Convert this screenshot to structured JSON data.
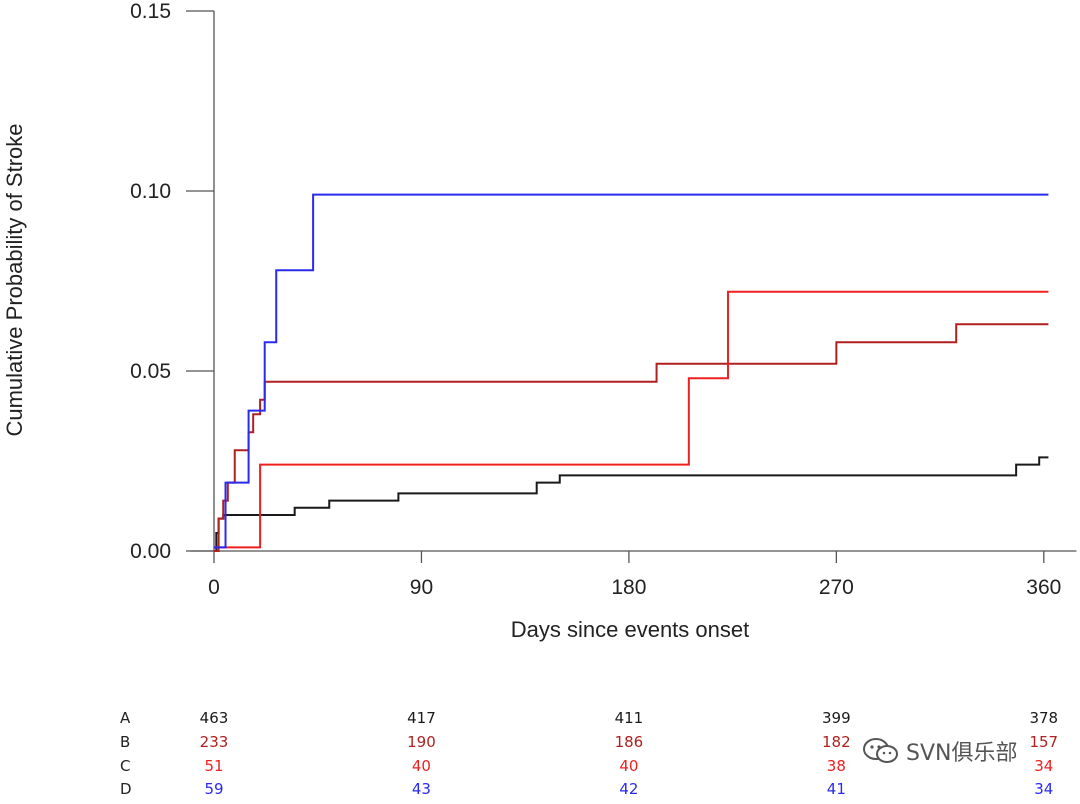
{
  "chart_data": {
    "type": "line",
    "step": true,
    "title": "",
    "xlabel": "Days since events onset",
    "ylabel": "Cumulative Probability of Stroke",
    "xlim": [
      -8,
      372
    ],
    "ylim": [
      0,
      0.15
    ],
    "x_ticks": [
      0,
      90,
      180,
      270,
      360
    ],
    "x_tick_labels": [
      "0",
      "90",
      "180",
      "270",
      "360"
    ],
    "y_ticks": [
      0,
      0.05,
      0.1,
      0.15
    ],
    "y_tick_labels": [
      "0.00",
      "0.05",
      "0.10",
      "0.15"
    ],
    "grid": false,
    "legend": "none",
    "series": [
      {
        "key": "A",
        "color": "#1a1a1a",
        "x": [
          0,
          1,
          2,
          4,
          35,
          50,
          80,
          140,
          150,
          348,
          358,
          362
        ],
        "y": [
          0.0,
          0.005,
          0.009,
          0.01,
          0.012,
          0.014,
          0.016,
          0.019,
          0.021,
          0.024,
          0.026,
          0.026
        ]
      },
      {
        "key": "B",
        "color": "#b02020",
        "x": [
          0,
          2,
          4,
          6,
          9,
          15,
          17,
          20,
          22,
          192,
          270,
          322,
          362
        ],
        "y": [
          0.0,
          0.009,
          0.014,
          0.019,
          0.028,
          0.033,
          0.038,
          0.042,
          0.047,
          0.052,
          0.058,
          0.063,
          0.063
        ]
      },
      {
        "key": "C",
        "color": "#ee2020",
        "x": [
          0,
          20,
          206,
          223,
          362
        ],
        "y": [
          0.001,
          0.024,
          0.048,
          0.072,
          0.072
        ]
      },
      {
        "key": "D",
        "color": "#2a2aee",
        "x": [
          0,
          5,
          15,
          22,
          27,
          43,
          362
        ],
        "y": [
          0.001,
          0.019,
          0.039,
          0.058,
          0.078,
          0.099,
          0.099
        ]
      }
    ],
    "risk_table": {
      "x": [
        0,
        90,
        180,
        270,
        360
      ],
      "rows": [
        {
          "label": "A",
          "color": "#1a1a1a",
          "values": [
            "463",
            "417",
            "411",
            "399",
            "378"
          ]
        },
        {
          "label": "B",
          "color": "#b02020",
          "values": [
            "233",
            "190",
            "186",
            "182",
            "157"
          ]
        },
        {
          "label": "C",
          "color": "#ee2020",
          "values": [
            "51",
            "40",
            "40",
            "38",
            "34"
          ]
        },
        {
          "label": "D",
          "color": "#2a2aee",
          "values": [
            "59",
            "43",
            "42",
            "41",
            "34"
          ]
        }
      ]
    }
  },
  "watermark": {
    "text": "SVN俱乐部",
    "icon": "wechat-icon"
  }
}
